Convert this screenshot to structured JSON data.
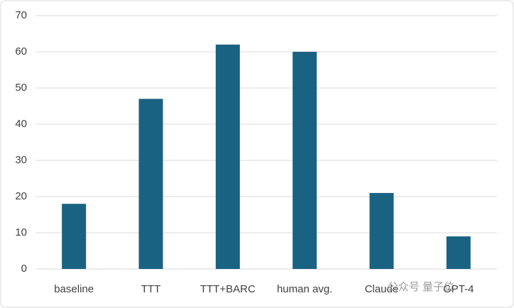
{
  "chart_data": {
    "type": "bar",
    "categories": [
      "baseline",
      "TTT",
      "TTT+BARC",
      "human avg.",
      "Claude",
      "GPT-4"
    ],
    "values": [
      18,
      47,
      62,
      60,
      21,
      9
    ],
    "color": "#1a6282",
    "ylim": [
      0,
      70
    ],
    "yticks": [
      0,
      10,
      20,
      30,
      40,
      50,
      60,
      70
    ],
    "grid": true,
    "watermark": "公众号 量子位"
  }
}
